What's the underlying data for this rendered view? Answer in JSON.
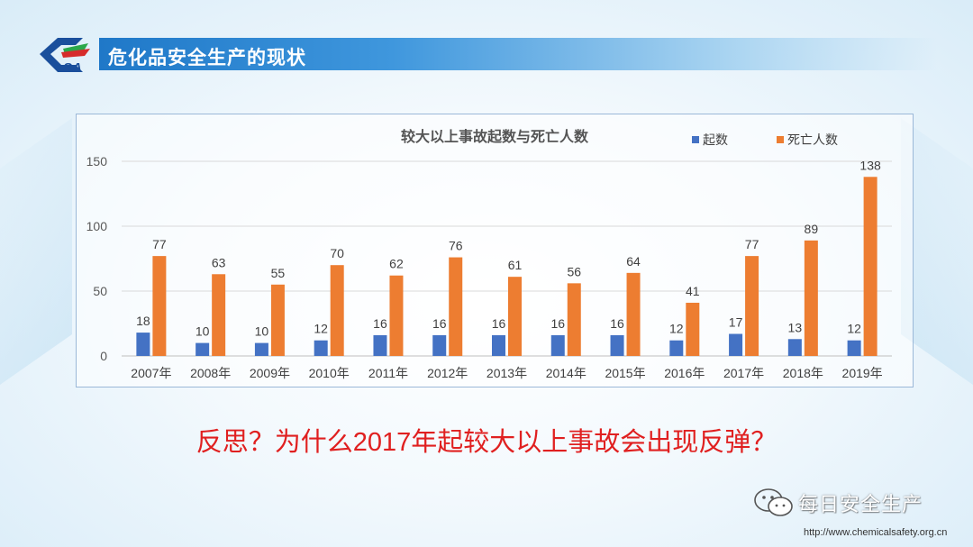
{
  "header": {
    "title": "危化品安全生产的现状",
    "logo_text": "SA"
  },
  "chart_data": {
    "type": "bar",
    "title": "较大以上事故起数与死亡人数",
    "categories": [
      "2007年",
      "2008年",
      "2009年",
      "2010年",
      "2011年",
      "2012年",
      "2013年",
      "2014年",
      "2015年",
      "2016年",
      "2017年",
      "2018年",
      "2019年"
    ],
    "series": [
      {
        "name": "起数",
        "color": "#4472c4",
        "values": [
          18,
          10,
          10,
          12,
          16,
          16,
          16,
          16,
          16,
          12,
          17,
          13,
          12
        ]
      },
      {
        "name": "死亡人数",
        "color": "#ed7d31",
        "values": [
          77,
          63,
          55,
          70,
          62,
          76,
          61,
          56,
          64,
          41,
          77,
          89,
          138
        ]
      }
    ],
    "ylim": [
      0,
      150
    ],
    "yticks": [
      0,
      50,
      100,
      150
    ],
    "grid": true,
    "legend_position": "top-right",
    "xlabel": "",
    "ylabel": ""
  },
  "question": "反思？为什么2017年起较大以上事故会出现反弹？",
  "watermark": {
    "text": "每日安全生产",
    "icon": "wechat-icon"
  },
  "url": "http://www.chemicalsafety.org.cn"
}
